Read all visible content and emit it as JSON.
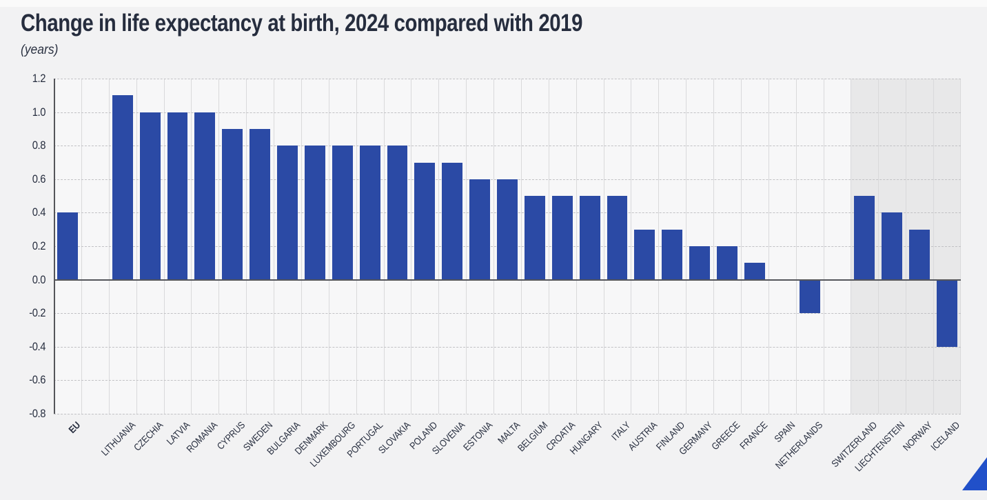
{
  "page": {
    "background_color": "#f2f2f3",
    "corner_accent_color": "#2150c9"
  },
  "chart_data": {
    "type": "bar",
    "title": "Change in life expectancy at birth, 2024 compared with 2019",
    "subtitle": "(years)",
    "unit": "years",
    "ylim": [
      -0.8,
      1.2
    ],
    "yticks": [
      1.2,
      1.0,
      0.8,
      0.6,
      0.4,
      0.2,
      0.0,
      -0.2,
      -0.4,
      -0.6,
      -0.8
    ],
    "ytick_labels": [
      "1.2",
      "1.0",
      "0.8",
      "0.6",
      "0.4",
      "0.2",
      "0.0",
      "-0.2",
      "-0.4",
      "-0.6",
      "-0.8"
    ],
    "grid": {
      "horizontal": "dashed",
      "vertical": "solid",
      "zero_line": "solid-dark"
    },
    "x_tick_rotation_deg": 45,
    "bar_color": "#2b4aa5",
    "shaded_region": {
      "color": "#e8e8e9",
      "applies_to": [
        "SWITZERLAND",
        "LIECHTENSTEIN",
        "NORWAY",
        "ICELAND"
      ]
    },
    "items": [
      {
        "label": "EU",
        "value": 0.4,
        "bold": true
      },
      {
        "spacer": true
      },
      {
        "label": "LITHUANIA",
        "value": 1.1
      },
      {
        "label": "CZECHIA",
        "value": 1.0
      },
      {
        "label": "LATVIA",
        "value": 1.0
      },
      {
        "label": "ROMANIA",
        "value": 1.0
      },
      {
        "label": "CYPRUS",
        "value": 0.9
      },
      {
        "label": "SWEDEN",
        "value": 0.9
      },
      {
        "label": "BULGARIA",
        "value": 0.8
      },
      {
        "label": "DENMARK",
        "value": 0.8
      },
      {
        "label": "LUXEMBOURG",
        "value": 0.8
      },
      {
        "label": "PORTUGAL",
        "value": 0.8
      },
      {
        "label": "SLOVAKIA",
        "value": 0.8
      },
      {
        "label": "POLAND",
        "value": 0.7
      },
      {
        "label": "SLOVENIA",
        "value": 0.7
      },
      {
        "label": "ESTONIA",
        "value": 0.6
      },
      {
        "label": "MALTA",
        "value": 0.6
      },
      {
        "label": "BELGIUM",
        "value": 0.5
      },
      {
        "label": "CROATIA",
        "value": 0.5
      },
      {
        "label": "HUNGARY",
        "value": 0.5
      },
      {
        "label": "ITALY",
        "value": 0.5
      },
      {
        "label": "AUSTRIA",
        "value": 0.3
      },
      {
        "label": "FINLAND",
        "value": 0.3
      },
      {
        "label": "GERMANY",
        "value": 0.2
      },
      {
        "label": "GREECE",
        "value": 0.2
      },
      {
        "label": "FRANCE",
        "value": 0.1
      },
      {
        "label": "SPAIN",
        "value": 0.0
      },
      {
        "label": "NETHERLANDS",
        "value": -0.2
      },
      {
        "spacer": true
      },
      {
        "label": "SWITZERLAND",
        "value": 0.5,
        "shaded": true
      },
      {
        "label": "LIECHTENSTEIN",
        "value": 0.4,
        "shaded": true
      },
      {
        "label": "NORWAY",
        "value": 0.3,
        "shaded": true
      },
      {
        "label": "ICELAND",
        "value": -0.4,
        "shaded": true
      }
    ]
  }
}
